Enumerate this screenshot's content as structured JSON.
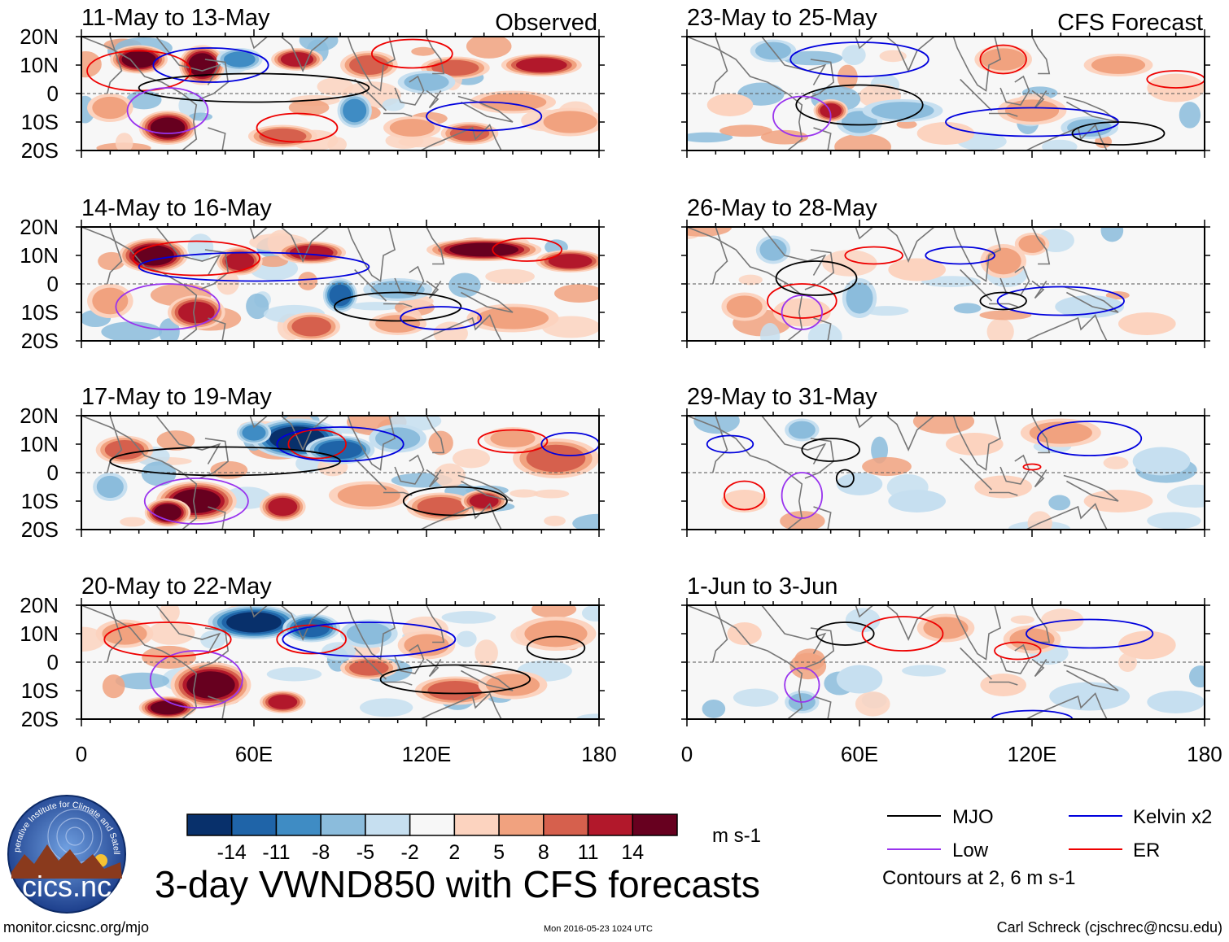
{
  "title": "3-day VWND850 with CFS forecasts",
  "labels": {
    "observed": "Observed",
    "forecast": "CFS Forecast",
    "units": "m s-1",
    "contours_note": "Contours at 2, 6 m s-1"
  },
  "footer": {
    "left": "monitor.cicsnc.org/mjo",
    "center": "Mon 2016-05-23 1024 UTC",
    "right": "Carl Schreck (cjschrec@ncsu.edu)"
  },
  "logo": {
    "ring_text": "Cooperative Institute for Climate and Satellites",
    "name": "cics.nc"
  },
  "colors": {
    "mjo": "#000000",
    "kelvin": "#0000dd",
    "low": "#9933ee",
    "er": "#ee0000",
    "coast": "#777777"
  },
  "colorbar": {
    "ticks": [
      "-14",
      "-11",
      "-8",
      "-5",
      "-2",
      "2",
      "5",
      "8",
      "11",
      "14"
    ],
    "colors": [
      "#08306b",
      "#1f64a8",
      "#3f8cc4",
      "#8bbcdc",
      "#c6dff0",
      "#f7f7f7",
      "#fcd3bf",
      "#f1a27f",
      "#d6604d",
      "#b2182b",
      "#67001f"
    ]
  },
  "legend": [
    {
      "label": "MJO",
      "color": "#000000"
    },
    {
      "label": "Kelvin x2",
      "color": "#0000dd"
    },
    {
      "label": "Low",
      "color": "#9933ee"
    },
    {
      "label": "ER",
      "color": "#ee0000"
    }
  ],
  "chart_data": {
    "type": "heatmap",
    "title": "3-day VWND850 with CFS forecasts",
    "xlim": [
      0,
      180
    ],
    "ylim": [
      -20,
      20
    ],
    "x_ticks": [
      "0",
      "60E",
      "120E",
      "180"
    ],
    "y_ticks": [
      "20N",
      "10N",
      "0",
      "10S",
      "20S"
    ],
    "panels": [
      {
        "column": "observed",
        "title": "11-May to 13-May",
        "intensity": 1.0
      },
      {
        "column": "observed",
        "title": "14-May to 16-May",
        "intensity": 1.0
      },
      {
        "column": "observed",
        "title": "17-May to 19-May",
        "intensity": 1.1
      },
      {
        "column": "observed",
        "title": "20-May to 22-May",
        "intensity": 1.1
      },
      {
        "column": "forecast",
        "title": "23-May to 25-May",
        "intensity": 0.7
      },
      {
        "column": "forecast",
        "title": "26-May to 28-May",
        "intensity": 0.55
      },
      {
        "column": "forecast",
        "title": "29-May to 31-May",
        "intensity": 0.45
      },
      {
        "column": "forecast",
        "title": "1-Jun to 3-Jun",
        "intensity": 0.45
      }
    ]
  }
}
